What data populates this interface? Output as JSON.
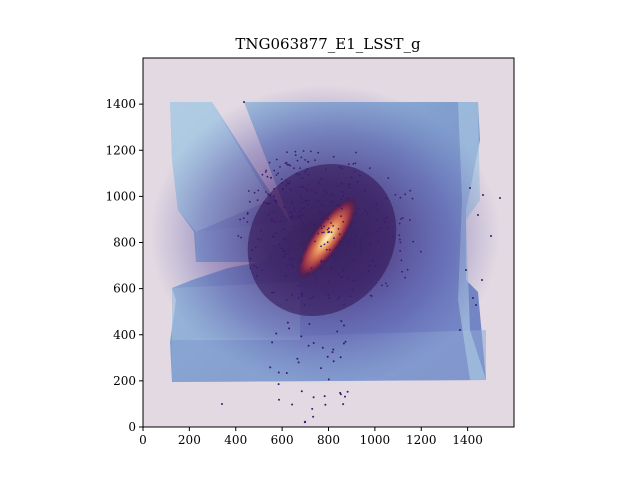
{
  "title": "TNG063877_E1_LSST_g",
  "x_axis": {
    "ticks": [
      "0",
      "200",
      "400",
      "600",
      "800",
      "1000",
      "1200",
      "1400"
    ],
    "tick_values": [
      0,
      200,
      400,
      600,
      800,
      1000,
      1200,
      1400
    ],
    "range": [
      0,
      1600
    ]
  },
  "y_axis": {
    "ticks": [
      "0",
      "200",
      "400",
      "600",
      "800",
      "1000",
      "1200",
      "1400"
    ],
    "tick_values": [
      0,
      200,
      400,
      600,
      800,
      1000,
      1200,
      1400
    ],
    "range": [
      0,
      1600
    ]
  },
  "colors": {
    "background": "#e2d9e2",
    "coverage_light": "#a9c6e0",
    "coverage_mid": "#6d8fc6",
    "coverage_dark": "#5b5fb0",
    "halo": "#5a2a8c",
    "core_bright": "#f7e6b8",
    "core_orange": "#e1894f",
    "core_red": "#b23c4a",
    "point": "#3a1a6e"
  },
  "image": {
    "subject": "galaxy",
    "colormap": "twilight"
  }
}
